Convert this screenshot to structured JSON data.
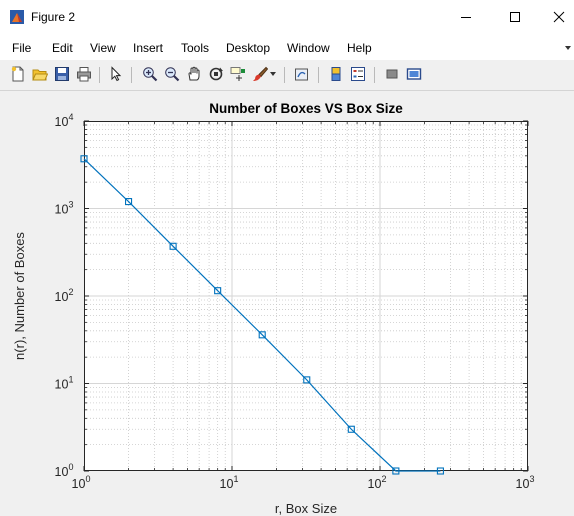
{
  "window": {
    "title": "Figure 2",
    "minimize_glyph": "—",
    "maximize_glyph": "☐",
    "close_glyph": "✕"
  },
  "menu": {
    "items": [
      "File",
      "Edit",
      "View",
      "Insert",
      "Tools",
      "Desktop",
      "Window",
      "Help"
    ],
    "overflow_glyph": "⯆"
  },
  "toolbar": {
    "buttons": [
      "new-figure",
      "open-file",
      "save-figure",
      "print-figure",
      "edit-plot",
      "zoom-in",
      "zoom-out",
      "pan",
      "rotate-3d",
      "data-cursor",
      "brush",
      "brush-dropdown",
      "link-plot",
      "insert-colorbar",
      "insert-legend",
      "hide-plot-tools",
      "show-plot-tools"
    ]
  },
  "chart_data": {
    "type": "line",
    "title": "Number of Boxes VS Box Size",
    "xlabel": "r, Box Size",
    "ylabel": "n(r), Number of Boxes",
    "xscale": "log",
    "yscale": "log",
    "xlim": [
      1,
      1000
    ],
    "ylim": [
      1,
      10000
    ],
    "grid": true,
    "minor_grid": true,
    "marker": "square",
    "line_color": "#0072BD",
    "x_ticks": [
      {
        "base": "10",
        "exp": "0"
      },
      {
        "base": "10",
        "exp": "1"
      },
      {
        "base": "10",
        "exp": "2"
      },
      {
        "base": "10",
        "exp": "3"
      }
    ],
    "y_ticks": [
      {
        "base": "10",
        "exp": "0"
      },
      {
        "base": "10",
        "exp": "1"
      },
      {
        "base": "10",
        "exp": "2"
      },
      {
        "base": "10",
        "exp": "3"
      },
      {
        "base": "10",
        "exp": "4"
      }
    ],
    "series": [
      {
        "x": [
          1,
          2,
          4,
          8,
          16,
          32,
          64,
          128,
          256
        ],
        "y": [
          3700,
          1200,
          370,
          115,
          36,
          11,
          3,
          1,
          1
        ]
      }
    ]
  }
}
